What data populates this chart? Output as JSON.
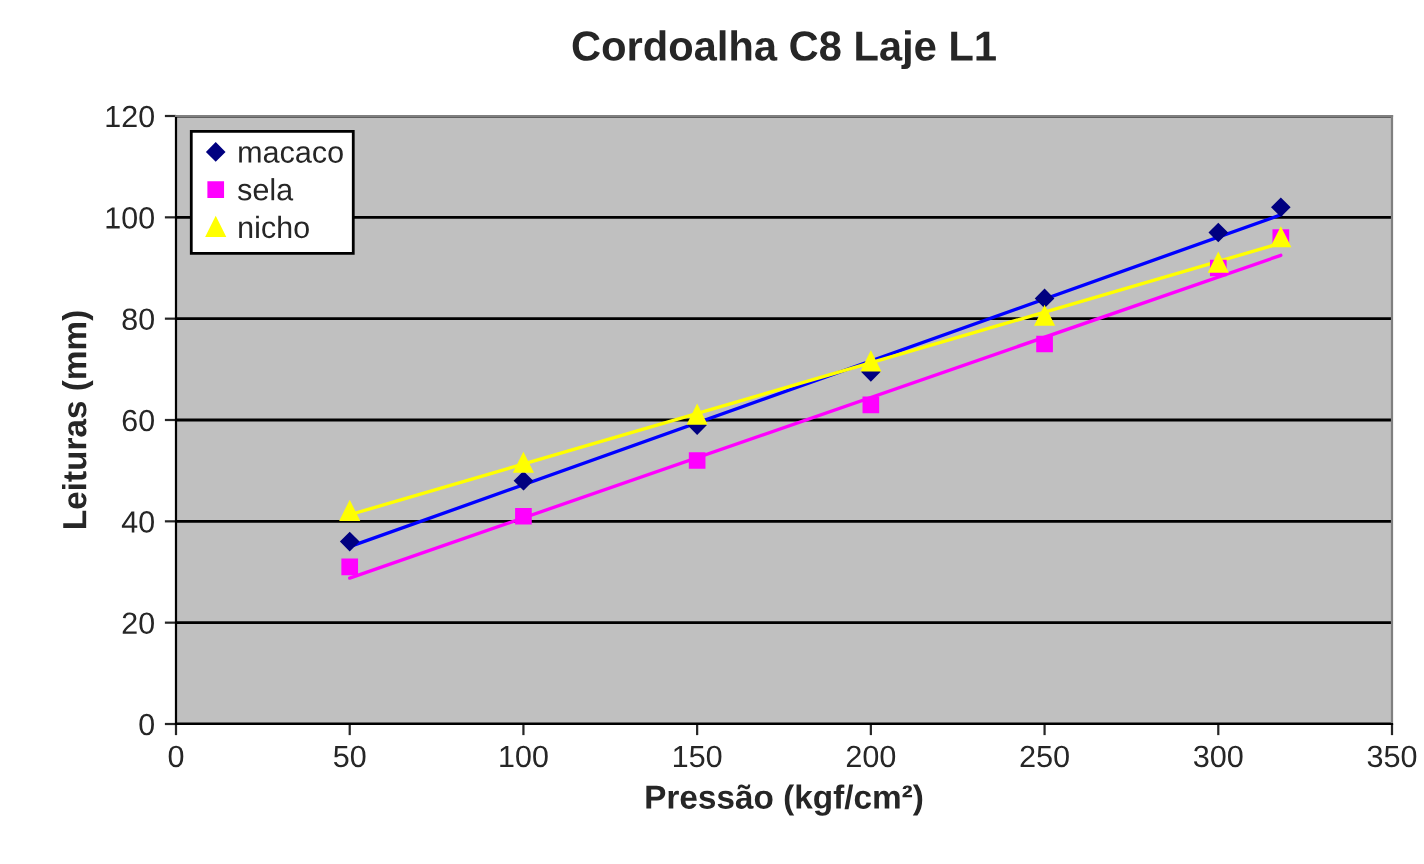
{
  "chart_data": {
    "type": "scatter",
    "title": "Cordoalha C8 Laje L1",
    "xlabel": "Pressão (kgf/cm²)",
    "ylabel": "Leituras (mm)",
    "xlim": [
      0,
      350
    ],
    "xticks": [
      0,
      50,
      100,
      150,
      200,
      250,
      300,
      350
    ],
    "ylim": [
      0,
      120
    ],
    "yticks": [
      0,
      20,
      40,
      60,
      80,
      100,
      120
    ],
    "grid": "y",
    "legend": "top left",
    "series": [
      {
        "name": "macaco",
        "marker": "diamond",
        "color": "#000080",
        "x": [
          50,
          100,
          150,
          200,
          250,
          300,
          318
        ],
        "values": [
          36,
          48,
          59,
          69.5,
          84,
          97,
          102
        ]
      },
      {
        "name": "sela",
        "marker": "square",
        "color": "#ff00ff",
        "x": [
          50,
          100,
          150,
          200,
          250,
          300,
          318
        ],
        "values": [
          31,
          41,
          52,
          63,
          75,
          90,
          96
        ]
      },
      {
        "name": "nicho",
        "marker": "triangle",
        "color": "#ffff00",
        "x": [
          50,
          100,
          150,
          200,
          250,
          300,
          318
        ],
        "values": [
          42,
          51.5,
          61,
          71.5,
          80.5,
          91,
          96
        ]
      },
      {
        "type": "line",
        "color": "#0000ff",
        "x": [
          50,
          318
        ],
        "values": [
          35,
          100.5
        ]
      },
      {
        "type": "line",
        "color": "#ff00ff",
        "x": [
          50,
          318
        ],
        "values": [
          28.8,
          92.5
        ]
      },
      {
        "type": "line",
        "color": "#ffff00",
        "x": [
          50,
          318
        ],
        "values": [
          41.3,
          94.9
        ]
      }
    ]
  }
}
